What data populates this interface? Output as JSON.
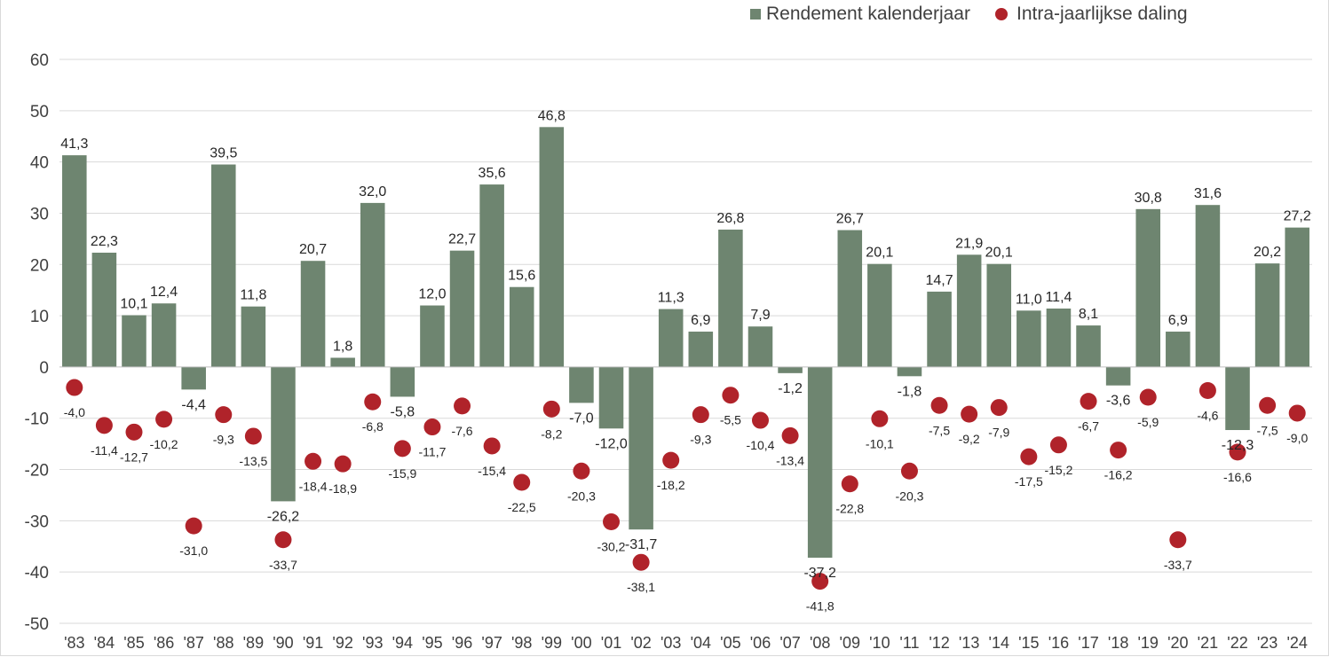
{
  "colors": {
    "bar": "#6e8570",
    "dot": "#b0232a",
    "grid": "#d9d9d9",
    "text": "#404040"
  },
  "chart_data": {
    "type": "bar",
    "title": "",
    "xlabel": "",
    "ylabel": "",
    "ylim": [
      -50,
      60
    ],
    "yticks": [
      -50,
      -40,
      -30,
      -20,
      -10,
      0,
      10,
      20,
      30,
      40,
      50,
      60
    ],
    "grid": true,
    "legend_position": "top-right",
    "categories": [
      "'83",
      "'84",
      "'85",
      "'86",
      "'87",
      "'88",
      "'89",
      "'90",
      "'91",
      "'92",
      "'93",
      "'94",
      "'95",
      "'96",
      "'97",
      "'98",
      "'99",
      "'00",
      "'01",
      "'02",
      "'03",
      "'04",
      "'05",
      "'06",
      "'07",
      "'08",
      "'09",
      "'10",
      "'11",
      "'12",
      "'13",
      "'14",
      "'15",
      "'16",
      "'17",
      "'18",
      "'19",
      "'20",
      "'21",
      "'22",
      "'23",
      "'24"
    ],
    "series": [
      {
        "name": "Rendement kalenderjaar",
        "type": "bar",
        "values": [
          41.3,
          22.3,
          10.1,
          12.4,
          -4.4,
          39.5,
          11.8,
          -26.2,
          20.7,
          1.8,
          32.0,
          -5.8,
          12.0,
          22.7,
          35.6,
          15.6,
          46.8,
          -7.0,
          -12.0,
          -31.7,
          11.3,
          6.9,
          26.8,
          7.9,
          -1.2,
          -37.2,
          26.7,
          20.1,
          -1.8,
          14.7,
          21.9,
          20.1,
          11.0,
          11.4,
          8.1,
          -3.6,
          30.8,
          6.9,
          31.6,
          -12.3,
          20.2,
          27.2
        ],
        "labels": [
          "41,3",
          "22,3",
          "10,1",
          "12,4",
          "-4,4",
          "39,5",
          "11,8",
          "-26,2",
          "20,7",
          "1,8",
          "32,0",
          "-5,8",
          "12,0",
          "22,7",
          "35,6",
          "15,6",
          "46,8",
          "-7,0",
          "-12,0",
          "-31,7",
          "11,3",
          "6,9",
          "26,8",
          "7,9",
          "-1,2",
          "-37,2",
          "26,7",
          "20,1",
          "-1,8",
          "14,7",
          "21,9",
          "20,1",
          "11,0",
          "11,4",
          "8,1",
          "-3,6",
          "30,8",
          "6,9",
          "31,6",
          "-12,3",
          "20,2",
          "27,2"
        ]
      },
      {
        "name": "Intra-jaarlijkse daling",
        "type": "scatter",
        "values": [
          -4.0,
          -11.4,
          -12.7,
          -10.2,
          -31.0,
          -9.3,
          -13.5,
          -33.7,
          -18.4,
          -18.9,
          -6.8,
          -15.9,
          -11.7,
          -7.6,
          -15.4,
          -22.5,
          -8.2,
          -20.3,
          -30.2,
          -38.1,
          -18.2,
          -9.3,
          -5.5,
          -10.4,
          -13.4,
          -41.8,
          -22.8,
          -10.1,
          -20.3,
          -7.5,
          -9.2,
          -7.9,
          -17.5,
          -15.2,
          -6.7,
          -16.2,
          -5.9,
          -33.7,
          -4.6,
          -16.6,
          -7.5,
          -9.0
        ],
        "labels": [
          "-4,0",
          "-11,4",
          "-12,7",
          "-10,2",
          "-31,0",
          "-9,3",
          "-13,5",
          "-33,7",
          "-18,4",
          "-18,9",
          "-6,8",
          "-15,9",
          "-11,7",
          "-7,6",
          "-15,4",
          "-22,5",
          "-8,2",
          "-20,3",
          "-30,2",
          "-38,1",
          "-18,2",
          "-9,3",
          "-5,5",
          "-10,4",
          "-13,4",
          "-41,8",
          "-22,8",
          "-10,1",
          "-20,3",
          "-7,5",
          "-9,2",
          "-7,9",
          "-17,5",
          "-15,2",
          "-6,7",
          "-16,2",
          "-5,9",
          "-33,7",
          "-4,6",
          "-16,6",
          "-7,5",
          "-9,0"
        ]
      }
    ]
  }
}
